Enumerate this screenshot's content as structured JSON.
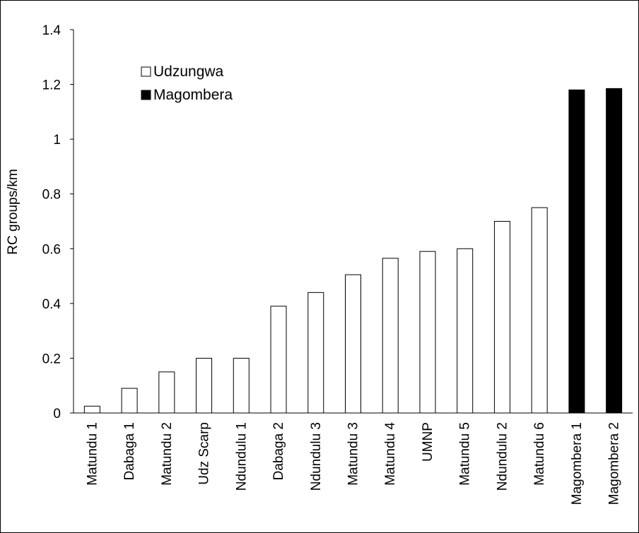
{
  "chart_data": {
    "type": "bar",
    "title": "",
    "xlabel": "",
    "ylabel": "RC groups/km",
    "ylim": [
      0,
      1.4
    ],
    "yticks": [
      "0",
      "0.2",
      "0.4",
      "0.6",
      "0.8",
      "1",
      "1.2",
      "1.4"
    ],
    "grid": false,
    "legend_position": "top-left",
    "categories": [
      "Matundu 1",
      "Dabaga 1",
      "Matundu 2",
      "Udz Scarp",
      "Ndundulu 1",
      "Dabaga 2",
      "Ndundulu 3",
      "Matundu 3",
      "Matundu 4",
      "UMNP",
      "Matundu 5",
      "Ndundulu 2",
      "Matundu 6",
      "Magombera 1",
      "Magombera 2"
    ],
    "values": [
      0.025,
      0.09,
      0.15,
      0.2,
      0.2,
      0.39,
      0.44,
      0.505,
      0.565,
      0.59,
      0.6,
      0.7,
      0.75,
      1.18,
      1.185
    ],
    "groups": [
      "Udzungwa",
      "Udzungwa",
      "Udzungwa",
      "Udzungwa",
      "Udzungwa",
      "Udzungwa",
      "Udzungwa",
      "Udzungwa",
      "Udzungwa",
      "Udzungwa",
      "Udzungwa",
      "Udzungwa",
      "Udzungwa",
      "Magombera",
      "Magombera"
    ],
    "series": [
      {
        "name": "Udzungwa",
        "fill": "#ffffff",
        "stroke": "#000000"
      },
      {
        "name": "Magombera",
        "fill": "#000000",
        "stroke": "#000000"
      }
    ]
  }
}
